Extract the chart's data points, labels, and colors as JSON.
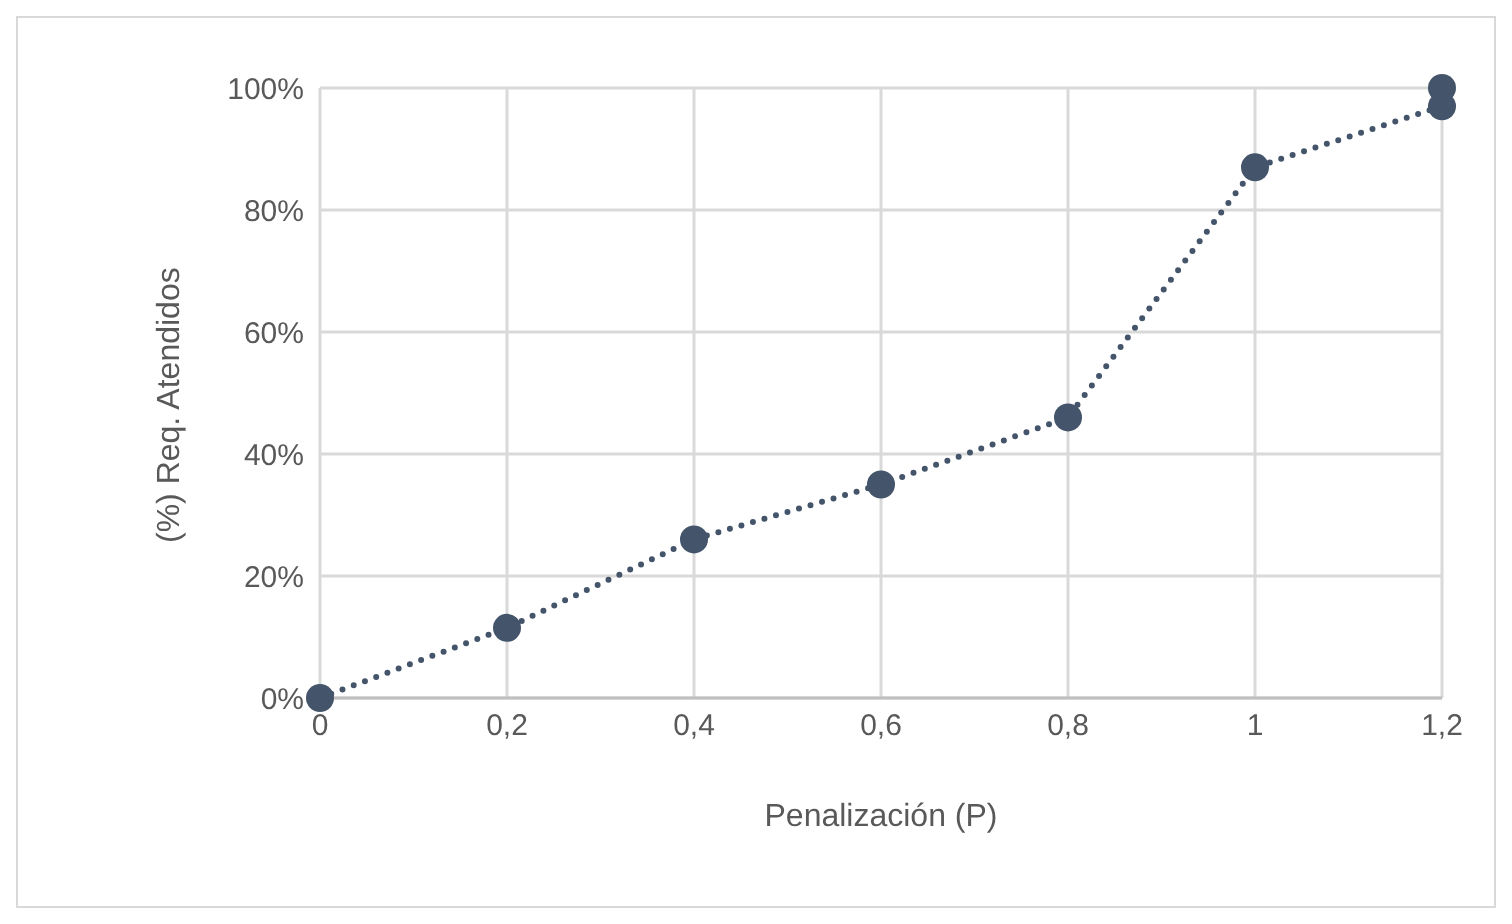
{
  "chart_data": {
    "type": "line",
    "xlabel": "Penalización (P)",
    "ylabel": "(%) Req. Atendidos",
    "x": [
      0,
      0.2,
      0.4,
      0.6,
      0.8,
      1,
      1.2
    ],
    "series": [
      {
        "color": "#44546a",
        "values": [
          0,
          11.5,
          26,
          35,
          46,
          87,
          97
        ],
        "marker": "circle",
        "line_style": "dotted"
      },
      {
        "type": "scatter",
        "color": "#44546a",
        "x": [
          1.2
        ],
        "values": [
          100
        ],
        "marker": "circle"
      }
    ],
    "xlim": [
      0,
      1.2
    ],
    "xticks": [
      0,
      {
        "value": 0.2,
        "label": "0,2"
      },
      {
        "value": 0.4,
        "label": "0,4"
      },
      {
        "value": 0.6,
        "label": "0,6"
      },
      {
        "value": 0.8,
        "label": "0,8"
      },
      1,
      {
        "value": 1.2,
        "label": "1,2"
      }
    ],
    "ylim": [
      0,
      100
    ],
    "yticks": [
      {
        "value": 0,
        "label": "0%"
      },
      {
        "value": 20,
        "label": "20%"
      },
      {
        "value": 40,
        "label": "40%"
      },
      {
        "value": 60,
        "label": "60%"
      },
      {
        "value": 80,
        "label": "80%"
      },
      {
        "value": 100,
        "label": "100%"
      }
    ],
    "grid": true
  }
}
